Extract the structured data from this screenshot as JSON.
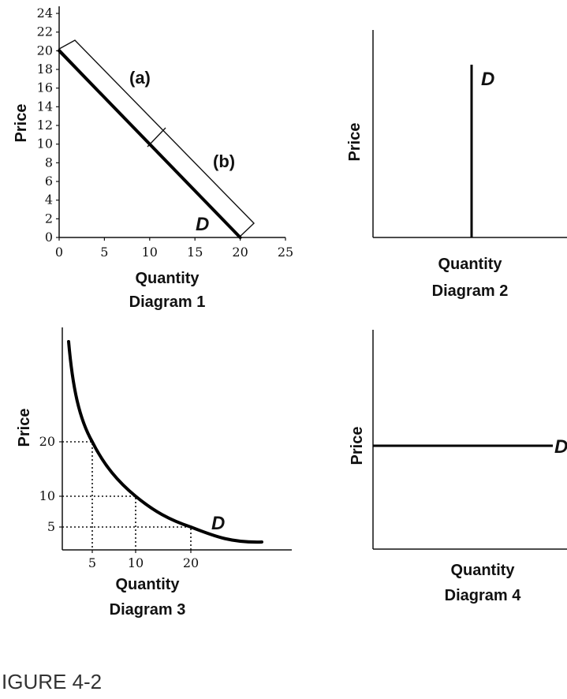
{
  "caption": "IGURE 4-2",
  "chart_data": [
    {
      "type": "line",
      "diagram_label": "Diagram 1",
      "xlabel": "Quantity",
      "ylabel": "Price",
      "xlim": [
        0,
        25
      ],
      "ylim": [
        0,
        24
      ],
      "x_ticks": [
        0,
        5,
        10,
        15,
        20,
        25
      ],
      "y_ticks": [
        0,
        2,
        4,
        6,
        8,
        10,
        12,
        14,
        16,
        18,
        20,
        22,
        24
      ],
      "series": [
        {
          "name": "D",
          "x": [
            0,
            20
          ],
          "y": [
            20,
            0
          ]
        }
      ],
      "curve_label": "D",
      "annotations": [
        "(a)",
        "(b)"
      ]
    },
    {
      "type": "line",
      "diagram_label": "Diagram 2",
      "xlabel": "Quantity",
      "ylabel": "Price",
      "shape": "vertical",
      "curve_label": "D"
    },
    {
      "type": "line",
      "diagram_label": "Diagram 3",
      "xlabel": "Quantity",
      "ylabel": "Price",
      "x_ticks": [
        5,
        10,
        20
      ],
      "y_ticks": [
        5,
        10,
        20
      ],
      "series": [
        {
          "name": "D",
          "points": [
            [
              5,
              20
            ],
            [
              10,
              10
            ],
            [
              20,
              5
            ]
          ]
        }
      ],
      "curve_label": "D"
    },
    {
      "type": "line",
      "diagram_label": "Diagram 4",
      "xlabel": "Quantity",
      "ylabel": "Price",
      "shape": "horizontal",
      "curve_label": "D"
    }
  ]
}
